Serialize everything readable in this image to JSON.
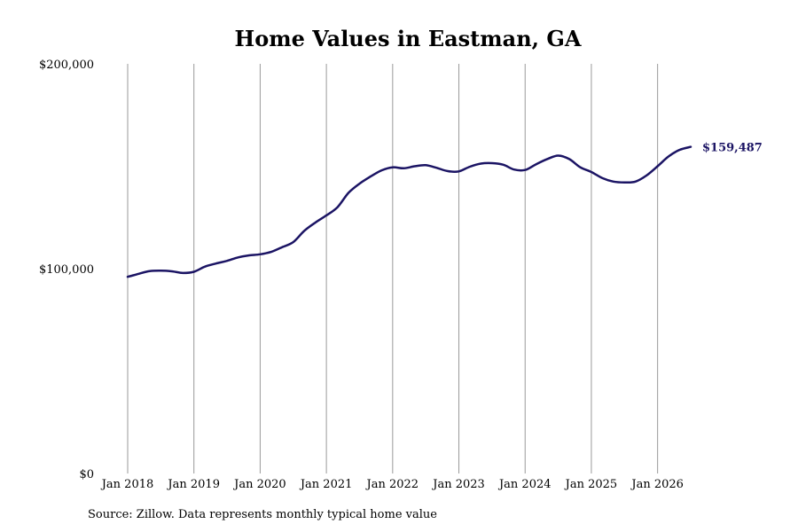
{
  "chart_data": {
    "type": "line",
    "title": "Home Values in Eastman, GA",
    "xlabel": "",
    "ylabel": "",
    "ylim": [
      0,
      200000
    ],
    "xlim": [
      "2018-01",
      "2026-07"
    ],
    "x_ticks": [
      {
        "date": "2018-01",
        "label": "Jan 2018"
      },
      {
        "date": "2019-01",
        "label": "Jan 2019"
      },
      {
        "date": "2020-01",
        "label": "Jan 2020"
      },
      {
        "date": "2021-01",
        "label": "Jan 2021"
      },
      {
        "date": "2022-01",
        "label": "Jan 2022"
      },
      {
        "date": "2023-01",
        "label": "Jan 2023"
      },
      {
        "date": "2024-01",
        "label": "Jan 2024"
      },
      {
        "date": "2025-01",
        "label": "Jan 2025"
      },
      {
        "date": "2026-01",
        "label": "Jan 2026"
      }
    ],
    "y_ticks": [
      {
        "value": 0,
        "label": "$0"
      },
      {
        "value": 100000,
        "label": "$100,000"
      },
      {
        "value": 200000,
        "label": "$200,000"
      }
    ],
    "grid": "vertical",
    "series": [
      {
        "color": "#1b1464",
        "points": [
          [
            "2018-01",
            96000
          ],
          [
            "2018-03",
            97500
          ],
          [
            "2018-05",
            98800
          ],
          [
            "2018-07",
            99000
          ],
          [
            "2018-09",
            98700
          ],
          [
            "2018-11",
            97900
          ],
          [
            "2019-01",
            98500
          ],
          [
            "2019-03",
            101000
          ],
          [
            "2019-05",
            102500
          ],
          [
            "2019-07",
            103800
          ],
          [
            "2019-09",
            105500
          ],
          [
            "2019-11",
            106500
          ],
          [
            "2020-01",
            107000
          ],
          [
            "2020-03",
            108200
          ],
          [
            "2020-05",
            110500
          ],
          [
            "2020-07",
            113000
          ],
          [
            "2020-09",
            118500
          ],
          [
            "2020-11",
            122500
          ],
          [
            "2021-01",
            126000
          ],
          [
            "2021-03",
            130000
          ],
          [
            "2021-05",
            137000
          ],
          [
            "2021-07",
            141500
          ],
          [
            "2021-09",
            145000
          ],
          [
            "2021-11",
            148000
          ],
          [
            "2022-01",
            149500
          ],
          [
            "2022-03",
            149000
          ],
          [
            "2022-05",
            150000
          ],
          [
            "2022-07",
            150500
          ],
          [
            "2022-09",
            149200
          ],
          [
            "2022-11",
            147600
          ],
          [
            "2023-01",
            147500
          ],
          [
            "2023-03",
            149800
          ],
          [
            "2023-05",
            151300
          ],
          [
            "2023-07",
            151500
          ],
          [
            "2023-09",
            150800
          ],
          [
            "2023-11",
            148400
          ],
          [
            "2024-01",
            148200
          ],
          [
            "2024-03",
            151000
          ],
          [
            "2024-05",
            153500
          ],
          [
            "2024-07",
            155200
          ],
          [
            "2024-09",
            153500
          ],
          [
            "2024-11",
            149500
          ],
          [
            "2025-01",
            147200
          ],
          [
            "2025-03",
            144200
          ],
          [
            "2025-05",
            142500
          ],
          [
            "2025-07",
            142100
          ],
          [
            "2025-09",
            142500
          ],
          [
            "2025-11",
            145500
          ],
          [
            "2026-01",
            150000
          ],
          [
            "2026-03",
            154800
          ],
          [
            "2026-05",
            158000
          ],
          [
            "2026-07",
            159487
          ]
        ]
      }
    ],
    "annotations": [
      {
        "label": "$159,487",
        "x": "2026-07",
        "y": 159487
      }
    ]
  },
  "source_note": "Source: Zillow. Data represents monthly typical home value"
}
